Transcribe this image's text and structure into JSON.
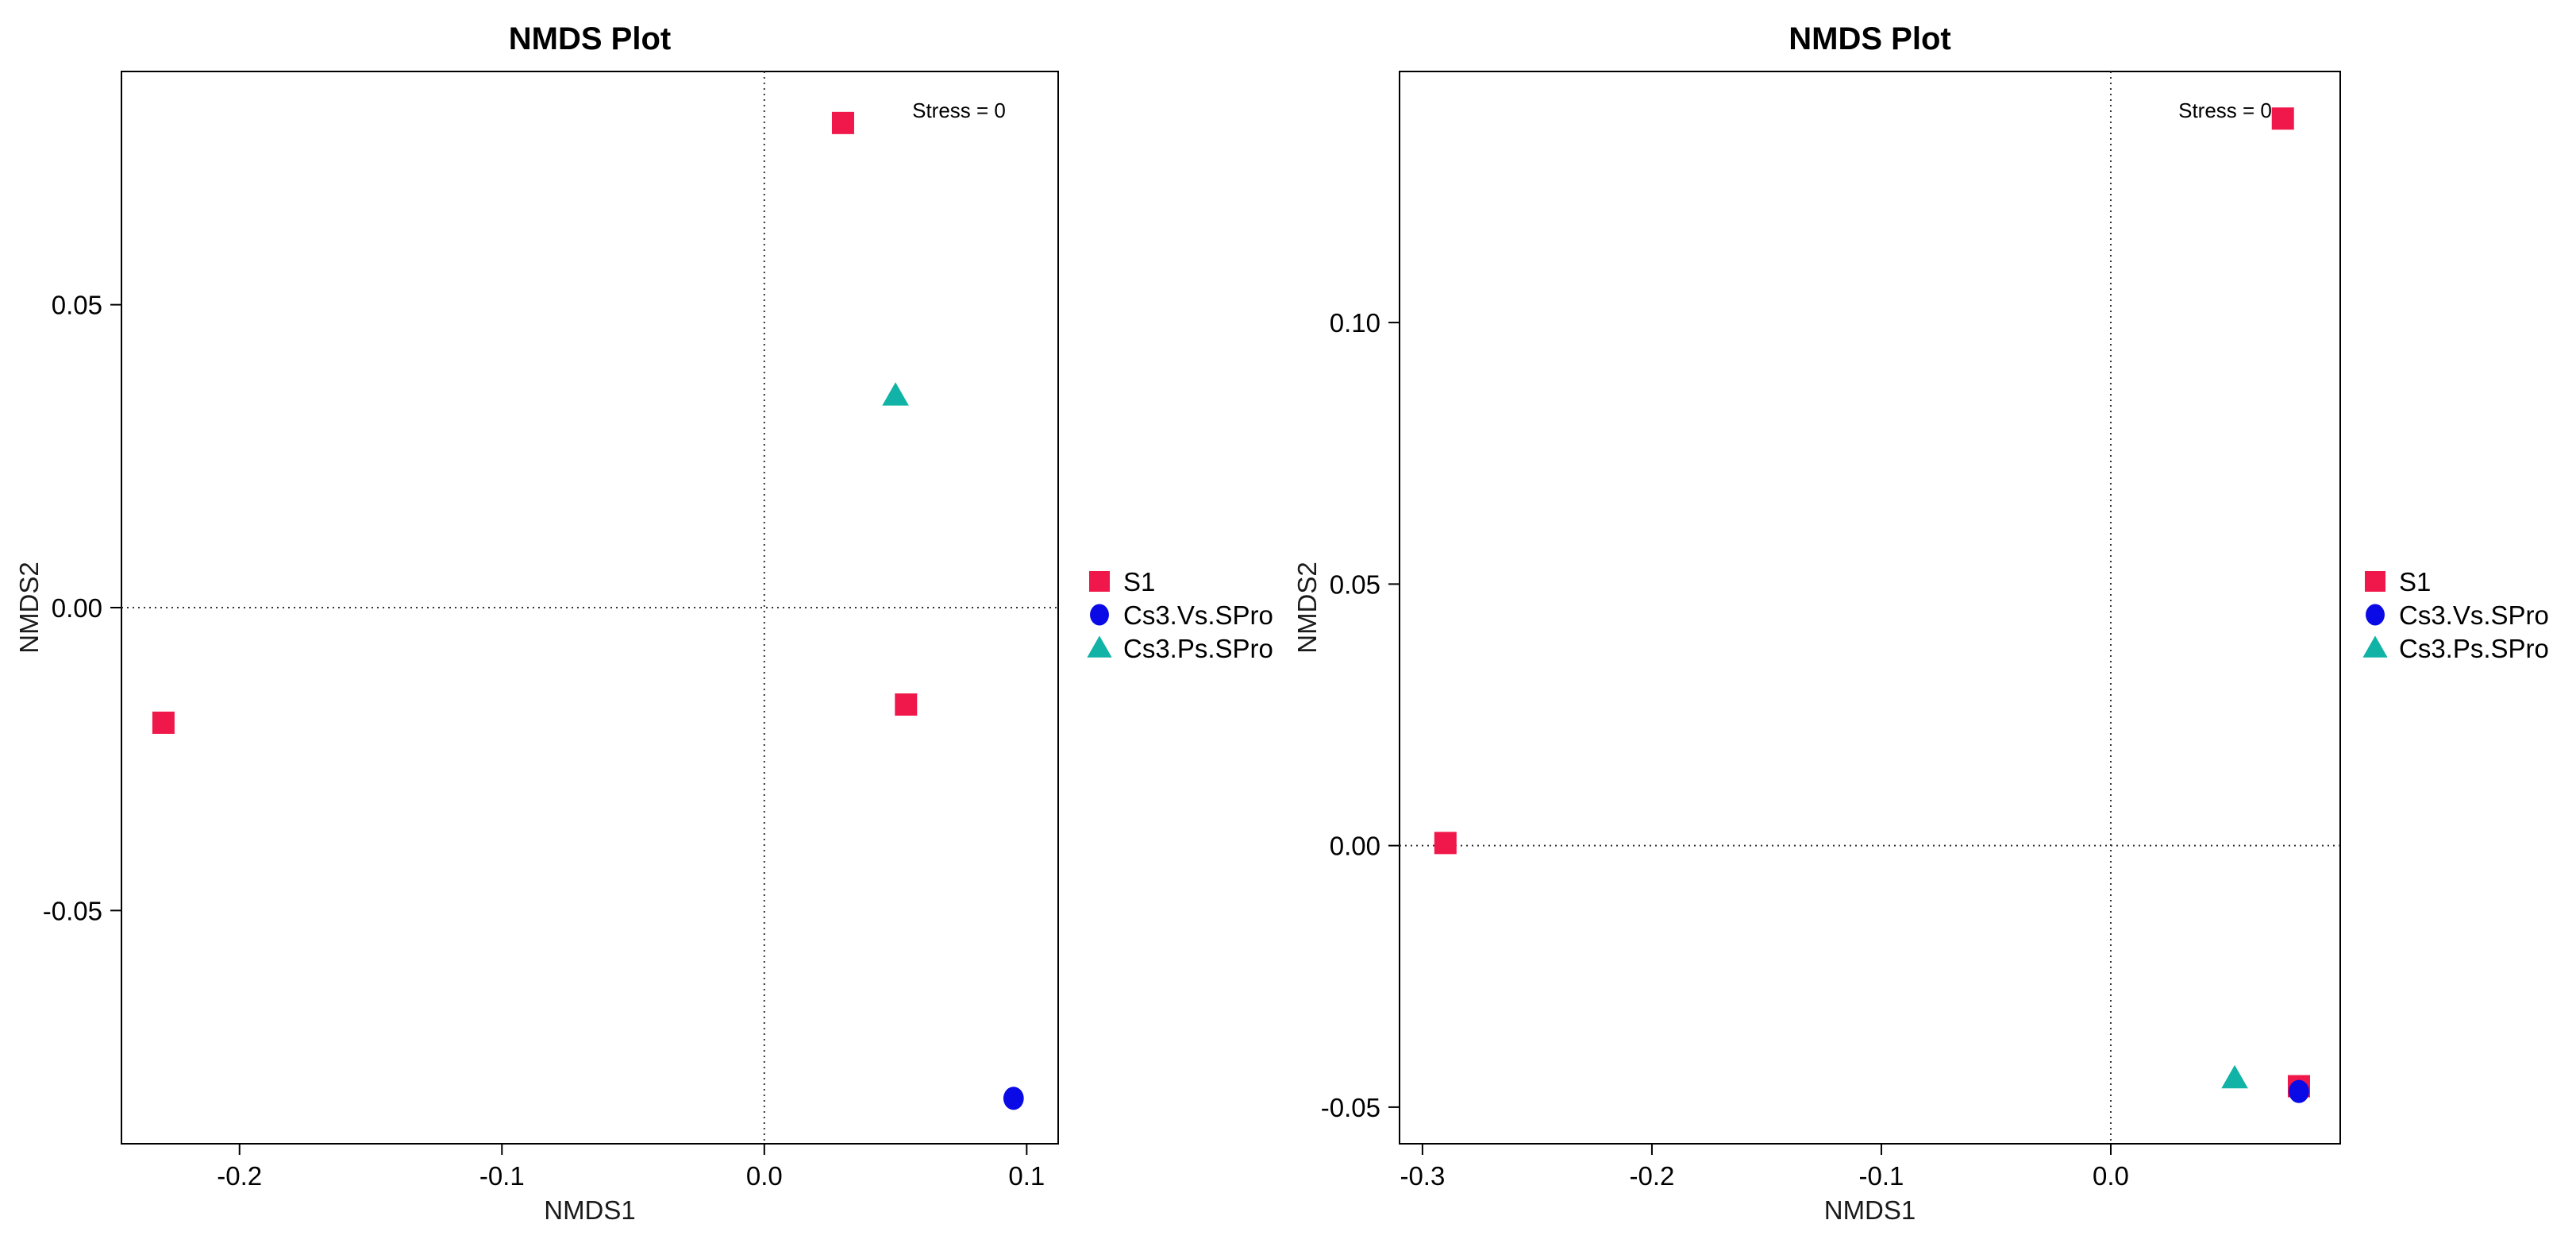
{
  "chart_data": [
    {
      "type": "scatter",
      "title": "NMDS Plot",
      "xlabel": "NMDS1",
      "ylabel": "NMDS2",
      "annotation": "Stress = 0",
      "xlim": [
        -0.245,
        0.112
      ],
      "ylim": [
        -0.0885,
        0.0885
      ],
      "xticks": [
        -0.2,
        -0.1,
        0.0,
        0.1
      ],
      "xtick_labels": [
        "-0.2",
        "-0.1",
        "0.0",
        "0.1"
      ],
      "yticks": [
        -0.05,
        0.0,
        0.05
      ],
      "ytick_labels": [
        "-0.05",
        "0.00",
        "0.05"
      ],
      "reference_lines": {
        "x": 0,
        "y": 0
      },
      "grid": false,
      "legend_position": "right",
      "series": [
        {
          "name": "S1",
          "shape": "square",
          "color": "#f0184a",
          "x": [
            0.03,
            -0.229,
            0.054
          ],
          "y": [
            0.08,
            -0.019,
            -0.016
          ]
        },
        {
          "name": "Cs3.Vs.SPro",
          "shape": "circle",
          "color": "#0a0ae6",
          "x": [
            0.095
          ],
          "y": [
            -0.081
          ]
        },
        {
          "name": "Cs3.Ps.SPro",
          "shape": "triangle",
          "color": "#10b3a6",
          "x": [
            0.05
          ],
          "y": [
            0.035
          ]
        }
      ]
    },
    {
      "type": "scatter",
      "title": "NMDS Plot",
      "xlabel": "NMDS1",
      "ylabel": "NMDS2",
      "annotation": "Stress = 0",
      "xlim": [
        -0.31,
        0.1
      ],
      "ylim": [
        -0.057,
        0.148
      ],
      "xticks": [
        -0.3,
        -0.2,
        -0.1,
        0.0
      ],
      "xtick_labels": [
        "-0.3",
        "-0.2",
        "-0.1",
        "0.0"
      ],
      "yticks": [
        -0.05,
        0.0,
        0.05,
        0.1
      ],
      "ytick_labels": [
        "-0.05",
        "0.00",
        "0.05",
        "0.10"
      ],
      "reference_lines": {
        "x": 0,
        "y": 0
      },
      "grid": false,
      "legend_position": "right",
      "series": [
        {
          "name": "S1",
          "shape": "square",
          "color": "#f0184a",
          "x": [
            0.075,
            -0.29,
            0.082
          ],
          "y": [
            0.139,
            0.0005,
            -0.046
          ]
        },
        {
          "name": "Cs3.Vs.SPro",
          "shape": "circle",
          "color": "#0a0ae6",
          "x": [
            0.082
          ],
          "y": [
            -0.047
          ]
        },
        {
          "name": "Cs3.Ps.SPro",
          "shape": "triangle",
          "color": "#10b3a6",
          "x": [
            0.054
          ],
          "y": [
            -0.0445
          ]
        }
      ]
    }
  ]
}
